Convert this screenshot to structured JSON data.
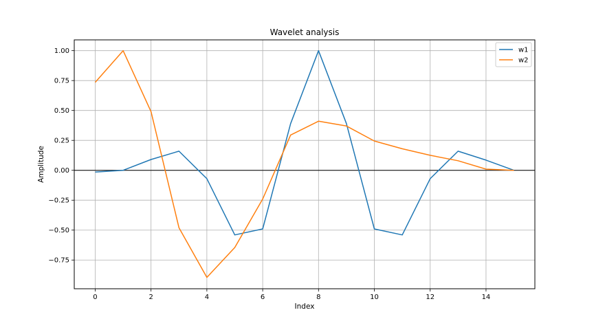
{
  "chart_data": {
    "type": "line",
    "title": "Wavelet analysis",
    "xlabel": "Index",
    "ylabel": "Amplitude",
    "xlim": [
      -0.75,
      15.75
    ],
    "ylim": [
      -0.99,
      1.09
    ],
    "xticks": [
      0,
      2,
      4,
      6,
      8,
      10,
      12,
      14
    ],
    "xtick_labels": [
      "0",
      "2",
      "4",
      "6",
      "8",
      "10",
      "12",
      "14"
    ],
    "yticks": [
      -0.75,
      -0.5,
      -0.25,
      0.0,
      0.25,
      0.5,
      0.75,
      1.0
    ],
    "ytick_labels": [
      "−0.75",
      "−0.50",
      "−0.25",
      "0.00",
      "0.25",
      "0.50",
      "0.75",
      "1.00"
    ],
    "grid": true,
    "zero_line": true,
    "legend_position": "top-right",
    "x": [
      0,
      1,
      2,
      3,
      4,
      5,
      6,
      7,
      8,
      9,
      10,
      11,
      12,
      13,
      14,
      15
    ],
    "series": [
      {
        "name": "w1",
        "color": "#1f77b4",
        "values": [
          -0.015,
          0.0,
          0.09,
          0.16,
          -0.07,
          -0.54,
          -0.49,
          0.39,
          1.0,
          0.39,
          -0.49,
          -0.54,
          -0.07,
          0.16,
          0.085,
          0.0
        ]
      },
      {
        "name": "w2",
        "color": "#ff7f0e",
        "values": [
          0.735,
          1.0,
          0.49,
          -0.48,
          -0.895,
          -0.645,
          -0.24,
          0.295,
          0.41,
          0.37,
          0.245,
          0.18,
          0.125,
          0.08,
          0.01,
          0.0
        ]
      }
    ]
  }
}
